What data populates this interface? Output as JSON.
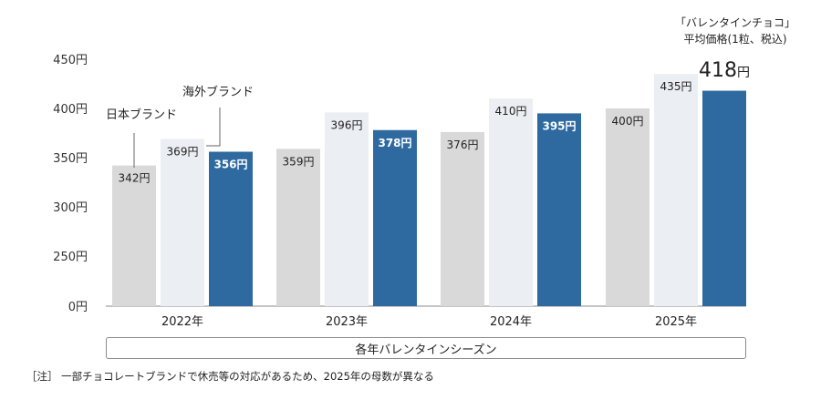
{
  "chart_data": {
    "type": "bar",
    "categories": [
      "2022年",
      "2023年",
      "2024年",
      "2025年"
    ],
    "series": [
      {
        "name": "日本ブランド",
        "values": [
          342,
          359,
          376,
          400
        ],
        "labels": [
          "342円",
          "359円",
          "376円",
          "400円"
        ]
      },
      {
        "name": "海外ブランド",
        "values": [
          369,
          396,
          410,
          435
        ],
        "labels": [
          "369円",
          "396円",
          "410円",
          "435円"
        ]
      },
      {
        "name": "「バレンタインチョコ」平均価格(1粒、税込)",
        "values": [
          356,
          378,
          395,
          418
        ],
        "labels": [
          "356円",
          "378円",
          "395円",
          "418円"
        ]
      }
    ],
    "y_ticks": [
      {
        "value": 0,
        "label": "0円"
      },
      {
        "value": 250,
        "label": "250円"
      },
      {
        "value": 300,
        "label": "300円"
      },
      {
        "value": 350,
        "label": "350円"
      },
      {
        "value": 400,
        "label": "400円"
      },
      {
        "value": 450,
        "label": "450円"
      }
    ],
    "axis_break": {
      "from": 0,
      "to": 250
    },
    "xlabel": "各年バレンタインシーズン",
    "legend": {
      "domestic": "日本ブランド",
      "foreign": "海外ブランド",
      "average_line1": "「バレンタインチョコ」",
      "average_line2": "平均価格(1粒、税込)",
      "average_highlight_number": "418",
      "average_highlight_unit": "円"
    },
    "colors": {
      "domestic": "#d9d9d9",
      "foreign": "#ebeef2",
      "average": "#2e6aa0"
    }
  },
  "footnote": "［注］ 一部チョコレートブランドで休売等の対応があるため、2025年の母数が異なる"
}
